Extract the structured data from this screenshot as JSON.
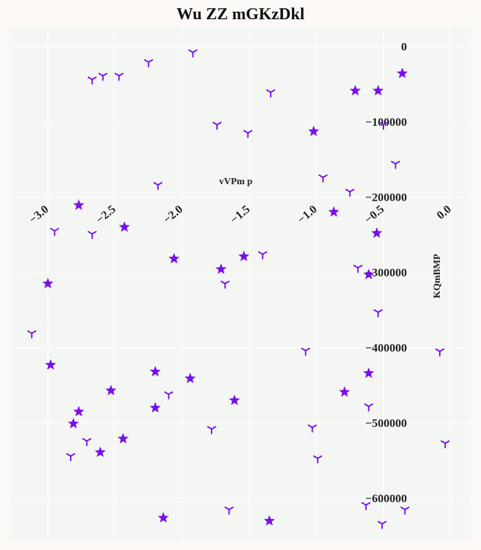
{
  "chart_data": {
    "type": "scatter",
    "title": "Wu ZZ mGKzDkl",
    "xlabel": "vVPm p",
    "ylabel": "KQmBMP",
    "xlim": [
      -3.28,
      0.15
    ],
    "ylim": [
      -655000,
      25000
    ],
    "x_ticks": [
      -3.0,
      -2.5,
      -2.0,
      -1.5,
      -1.0,
      -0.5,
      0.0
    ],
    "x_tick_labels": [
      "−3.0",
      "−2.5",
      "−2.0",
      "−1.5",
      "−1.0",
      "−0.5",
      "0.0"
    ],
    "y_ticks": [
      0,
      -100000,
      -200000,
      -300000,
      -400000,
      -500000,
      -600000
    ],
    "y_tick_labels": [
      "0",
      "−100000",
      "−200000",
      "−300000",
      "−400000",
      "−500000",
      "−600000"
    ],
    "grid": true,
    "marker_color": "#7a0fe8",
    "plot_background": "#f3f6f3",
    "series": [
      {
        "marker": "star",
        "points": [
          [
            -0.36,
            -36000
          ],
          [
            -0.71,
            -59000
          ],
          [
            -0.54,
            -59000
          ],
          [
            -1.02,
            -113000
          ],
          [
            -2.77,
            -211000
          ],
          [
            -0.87,
            -220000
          ],
          [
            -2.43,
            -240000
          ],
          [
            -0.55,
            -248000
          ],
          [
            -2.06,
            -282000
          ],
          [
            -1.71,
            -296000
          ],
          [
            -1.54,
            -279000
          ],
          [
            -0.61,
            -303000
          ],
          [
            -3.0,
            -315000
          ],
          [
            -2.98,
            -423000
          ],
          [
            -2.2,
            -432000
          ],
          [
            -1.94,
            -441000
          ],
          [
            -2.53,
            -457000
          ],
          [
            -0.79,
            -459000
          ],
          [
            -0.61,
            -434000
          ],
          [
            -1.61,
            -470000
          ],
          [
            -2.2,
            -480000
          ],
          [
            -2.77,
            -485000
          ],
          [
            -2.81,
            -501000
          ],
          [
            -2.44,
            -521000
          ],
          [
            -2.61,
            -539000
          ],
          [
            -2.14,
            -626000
          ],
          [
            -1.35,
            -630000
          ]
        ]
      },
      {
        "marker": "tri_down",
        "points": [
          [
            -1.92,
            -8000
          ],
          [
            -2.25,
            -21000
          ],
          [
            -2.67,
            -44000
          ],
          [
            -2.59,
            -39000
          ],
          [
            -2.47,
            -39000
          ],
          [
            -1.34,
            -61000
          ],
          [
            -1.74,
            -104000
          ],
          [
            -1.51,
            -115000
          ],
          [
            -0.5,
            -104000
          ],
          [
            -0.41,
            -156000
          ],
          [
            -0.95,
            -174000
          ],
          [
            -0.75,
            -193000
          ],
          [
            -2.18,
            -184000
          ],
          [
            -2.95,
            -245000
          ],
          [
            -2.67,
            -249000
          ],
          [
            -1.4,
            -276000
          ],
          [
            -0.69,
            -294000
          ],
          [
            -1.68,
            -315000
          ],
          [
            -0.54,
            -353000
          ],
          [
            -3.12,
            -381000
          ],
          [
            -1.08,
            -404000
          ],
          [
            -0.08,
            -405000
          ],
          [
            -2.1,
            -462000
          ],
          [
            -0.61,
            -478000
          ],
          [
            -1.78,
            -508000
          ],
          [
            -1.03,
            -506000
          ],
          [
            -2.71,
            -524000
          ],
          [
            -2.83,
            -544000
          ],
          [
            -0.04,
            -527000
          ],
          [
            -0.99,
            -547000
          ],
          [
            -0.63,
            -609000
          ],
          [
            -1.65,
            -615000
          ],
          [
            -0.51,
            -634000
          ],
          [
            -0.34,
            -615000
          ]
        ]
      }
    ]
  }
}
